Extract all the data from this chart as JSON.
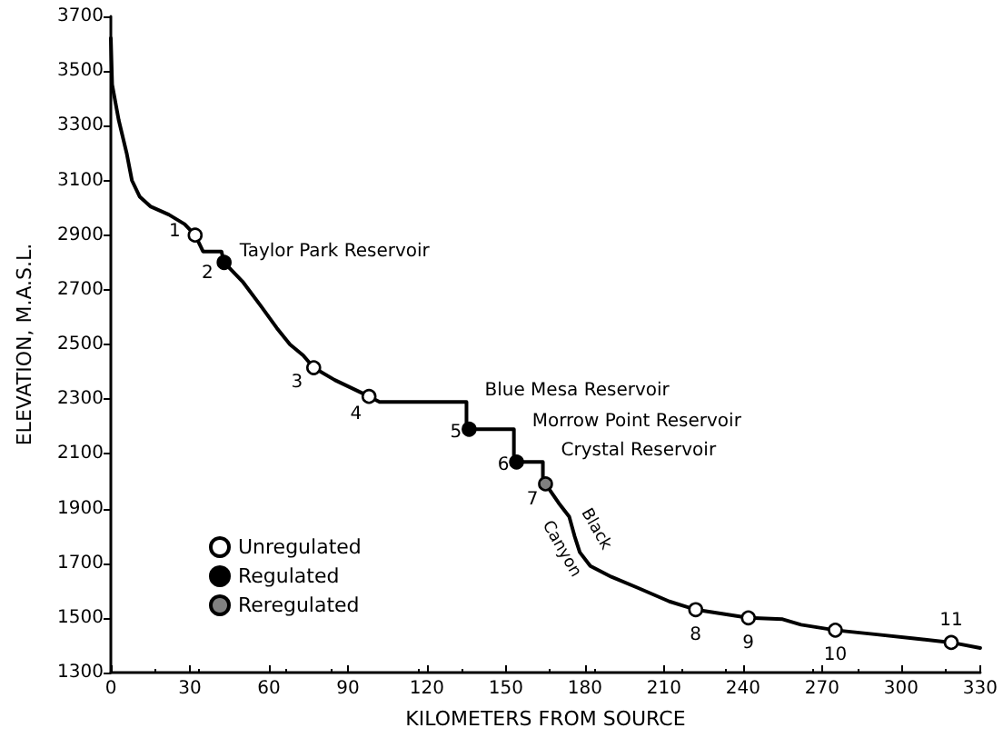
{
  "chart_data": {
    "type": "line",
    "xlabel": "KILOMETERS FROM SOURCE",
    "ylabel": "ELEVATION, M.A.S.L.",
    "xlim": [
      0,
      330
    ],
    "xticks": [
      0,
      30,
      60,
      90,
      120,
      150,
      180,
      210,
      240,
      270,
      300,
      330
    ],
    "ylim": [
      1300,
      3700
    ],
    "yticks": [
      1300,
      1500,
      1700,
      1900,
      2100,
      2300,
      2500,
      2700,
      2900,
      3100,
      3300,
      3500,
      3700
    ],
    "grid": false,
    "legend": "bottom left",
    "series": [
      {
        "color": "#000000",
        "marker": "none",
        "x": [
          0,
          0.5,
          3,
          6,
          8,
          11,
          15,
          22,
          28,
          32,
          34,
          35,
          42,
          43,
          50,
          57,
          63,
          68,
          73,
          77,
          85,
          98,
          102,
          135,
          135,
          153,
          153,
          164,
          164,
          165,
          170,
          174,
          176,
          178,
          182,
          190,
          200,
          212,
          222,
          232,
          242,
          255,
          262,
          275,
          290,
          305,
          319,
          330
        ],
        "values": [
          3620,
          3450,
          3320,
          3200,
          3100,
          3040,
          3005,
          2975,
          2940,
          2900,
          2860,
          2840,
          2840,
          2800,
          2730,
          2640,
          2560,
          2500,
          2460,
          2415,
          2370,
          2310,
          2290,
          2290,
          2190,
          2190,
          2070,
          2070,
          2000,
          1990,
          1920,
          1870,
          1800,
          1740,
          1690,
          1650,
          1610,
          1560,
          1530,
          1515,
          1500,
          1495,
          1475,
          1455,
          1440,
          1425,
          1410,
          1390
        ]
      },
      {
        "type": "scatter",
        "name": "Unregulated",
        "color": "#ffffff",
        "marker": "circle",
        "x": [
          32,
          77,
          98,
          222,
          242,
          275,
          319
        ],
        "values": [
          2900,
          2415,
          2310,
          1530,
          1500,
          1455,
          1410
        ]
      },
      {
        "type": "scatter",
        "name": "Regulated",
        "color": "#000000",
        "marker": "circle",
        "x": [
          43,
          136,
          154
        ],
        "values": [
          2800,
          2190,
          2070
        ]
      },
      {
        "type": "scatter",
        "name": "Reregulated",
        "color": "#808080",
        "marker": "circle",
        "x": [
          165
        ],
        "values": [
          1990
        ]
      }
    ],
    "annotations": [
      {
        "text": "1",
        "x": 32,
        "y": 2900
      },
      {
        "text": "2",
        "x": 43,
        "y": 2800
      },
      {
        "text": "3",
        "x": 77,
        "y": 2415
      },
      {
        "text": "4",
        "x": 98,
        "y": 2310
      },
      {
        "text": "5",
        "x": 136,
        "y": 2190
      },
      {
        "text": "6",
        "x": 154,
        "y": 2070
      },
      {
        "text": "7",
        "x": 165,
        "y": 1990
      },
      {
        "text": "8",
        "x": 222,
        "y": 1530
      },
      {
        "text": "9",
        "x": 242,
        "y": 1500
      },
      {
        "text": "10",
        "x": 275,
        "y": 1455
      },
      {
        "text": "11",
        "x": 319,
        "y": 1410
      },
      {
        "text": "Taylor Park Reservoir",
        "x": 42,
        "y": 2840
      },
      {
        "text": "Blue Mesa Reservoir",
        "x": 135,
        "y": 2290
      },
      {
        "text": "Morrow Point Reservoir",
        "x": 153,
        "y": 2190
      },
      {
        "text": "Crystal Reservoir",
        "x": 164,
        "y": 2070
      },
      {
        "text": "Black Canyon",
        "x": 176,
        "y": 1800
      }
    ]
  }
}
